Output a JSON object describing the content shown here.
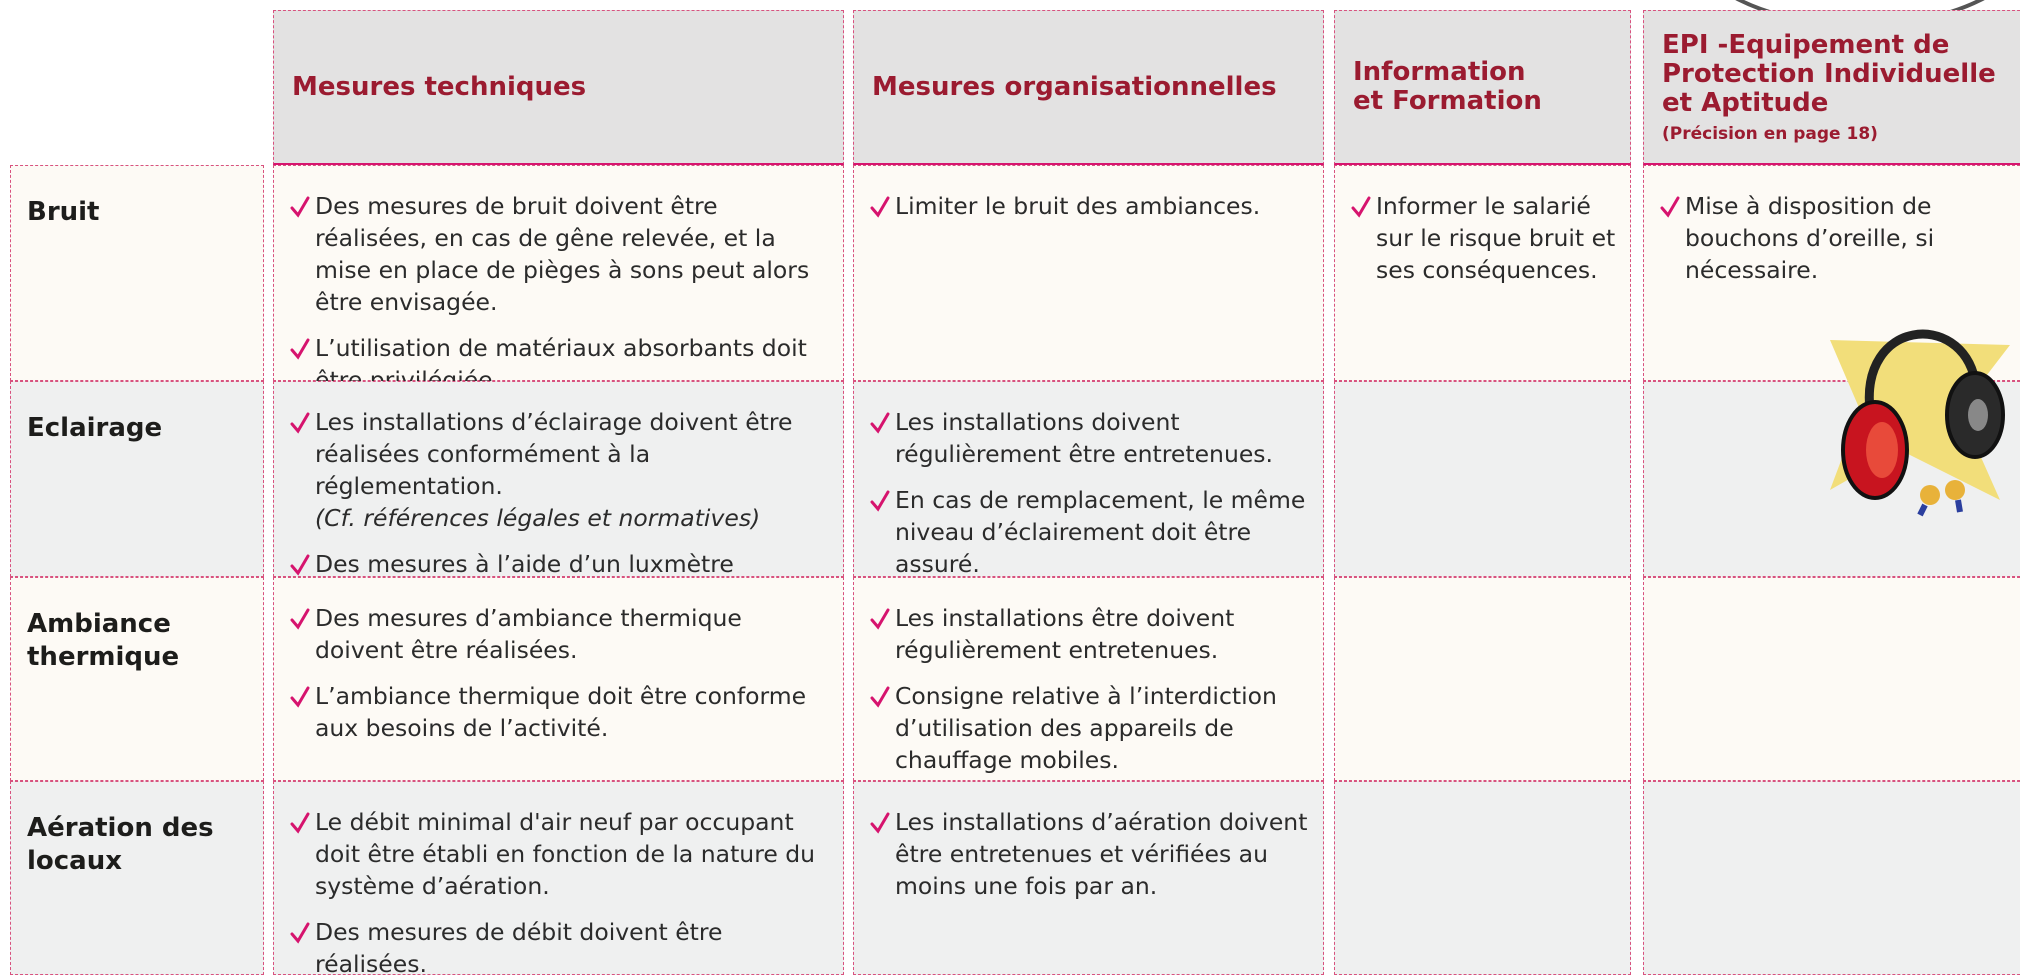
{
  "header": {
    "columns": [
      {
        "lines": [
          "Mesures techniques"
        ]
      },
      {
        "lines": [
          "Mesures organisationnelles"
        ]
      },
      {
        "lines": [
          "Information",
          "et Formation"
        ]
      },
      {
        "lines": [
          "EPI -Equipement de",
          "Protection Individuelle",
          "et Aptitude"
        ],
        "note": "(Précision en page 18)"
      }
    ]
  },
  "rows": [
    {
      "label": "Bruit",
      "cells": [
        [
          {
            "text": "Des mesures de bruit doivent être réalisées, en cas de gêne relevée, et la mise en place de pièges à sons peut alors être envisagée."
          },
          {
            "text": "L’utilisation de matériaux absorbants doit être privilégiée."
          }
        ],
        [
          {
            "text": "Limiter le bruit des ambiances."
          }
        ],
        [
          {
            "text": "Informer le salarié sur le risque bruit et ses conséquences."
          }
        ],
        [
          {
            "text": "Mise à disposition de bouchons d’oreille, si nécessaire."
          }
        ]
      ]
    },
    {
      "label": "Eclairage",
      "cells": [
        [
          {
            "text": "Les installations d’éclairage doivent être réalisées conformément à la réglementation.",
            "note": "(Cf. références légales et normatives)"
          },
          {
            "text": "Des mesures à l’aide d’un luxmètre doivent être réalisées."
          }
        ],
        [
          {
            "text": "Les installations doivent régulièrement être entretenues."
          },
          {
            "text": "En cas de remplacement, le même niveau d’éclairement doit être assuré."
          }
        ],
        [],
        []
      ]
    },
    {
      "label": "Ambiance thermique",
      "cells": [
        [
          {
            "text": "Des mesures d’ambiance thermique doivent être réalisées."
          },
          {
            "text": "L’ambiance thermique doit être conforme aux besoins de l’activité."
          }
        ],
        [
          {
            "text": "Les installations être doivent régulièrement entretenues."
          },
          {
            "text": "Consigne relative à l’interdiction d’utilisation des appareils de chauffage mobiles."
          }
        ],
        [],
        []
      ]
    },
    {
      "label": "Aération des locaux",
      "cells": [
        [
          {
            "text": "Le débit minimal d'air neuf par occupant doit être établi en fonction de la nature du système d’aération."
          },
          {
            "text": "Des mesures de débit doivent être réalisées."
          }
        ],
        [
          {
            "text": "Les installations d’aération doivent être entretenues et vérifiées au moins une fois par an."
          }
        ],
        [],
        []
      ]
    }
  ]
}
